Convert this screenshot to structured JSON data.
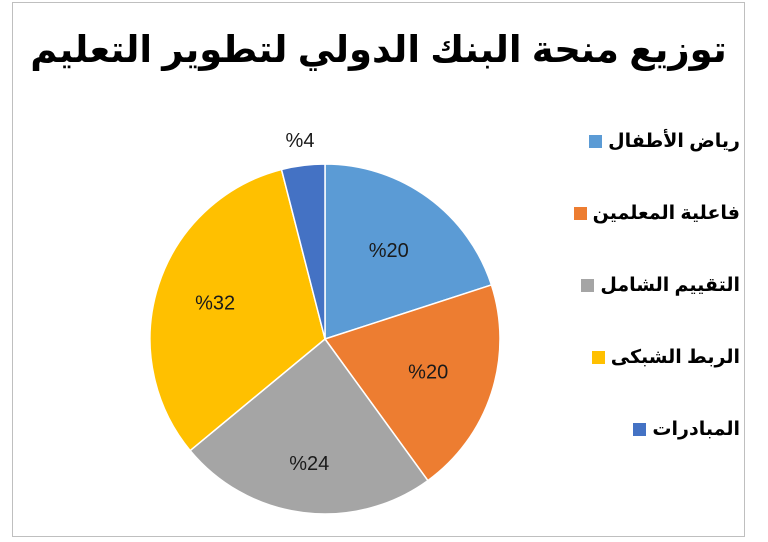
{
  "chart_data": {
    "type": "pie",
    "title": "توزيع منحة البنك الدولي لتطوير التعليم",
    "slices": [
      {
        "label": "رياض الأطفال",
        "value": 20,
        "value_label": "%20",
        "color": "#5B9BD5"
      },
      {
        "label": "فاعلية المعلمين",
        "value": 20,
        "value_label": "%20",
        "color": "#ED7D31"
      },
      {
        "label": "التقييم الشامل",
        "value": 24,
        "value_label": "%24",
        "color": "#A5A5A5"
      },
      {
        "label": "الربط الشبكى",
        "value": 32,
        "value_label": "%32",
        "color": "#FFC000"
      },
      {
        "label": "المبادرات",
        "value": 4,
        "value_label": "%4",
        "color": "#4472C4"
      }
    ],
    "legend_position": "right",
    "start": "12 o'clock, clockwise"
  }
}
